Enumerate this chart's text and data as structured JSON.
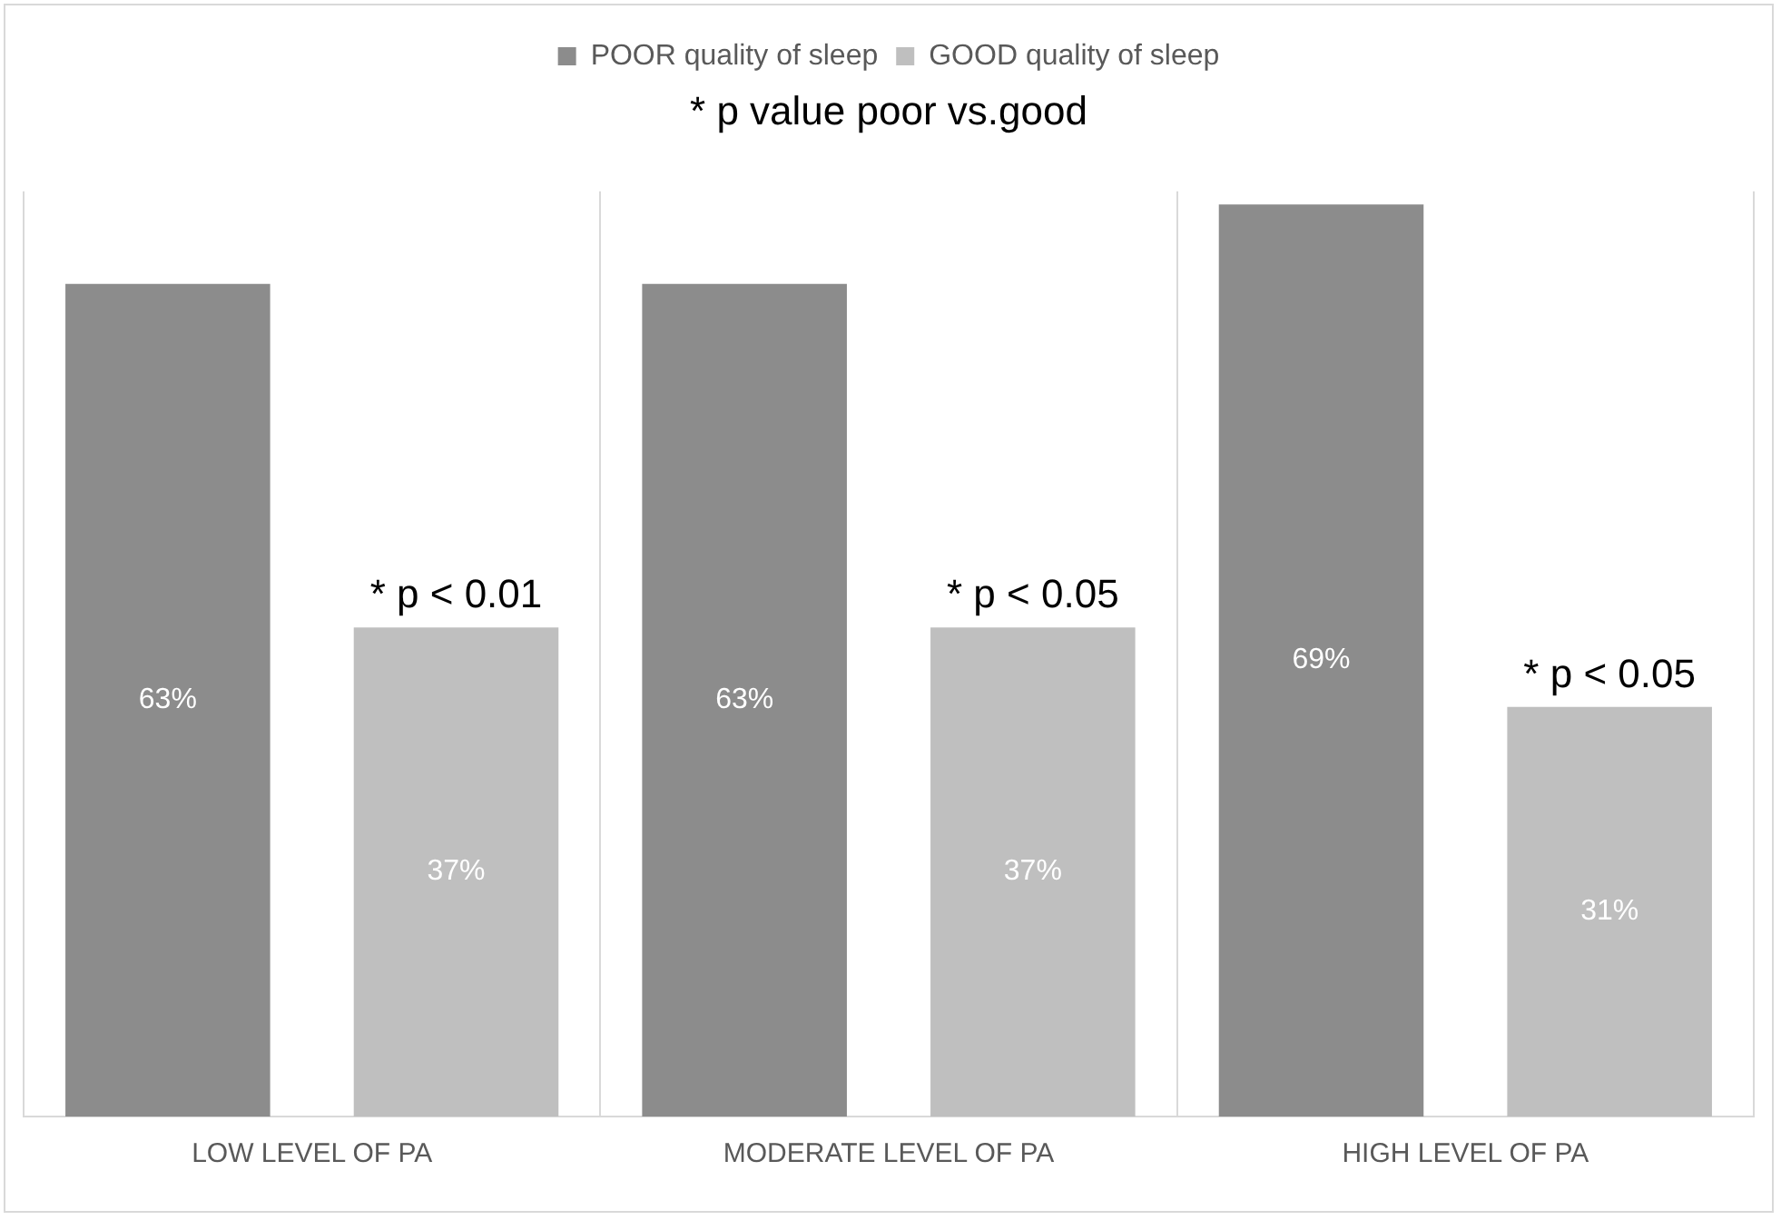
{
  "chart_data": {
    "type": "bar",
    "title": "* p value poor vs.good",
    "categories": [
      "LOW LEVEL OF PA",
      "MODERATE LEVEL OF PA",
      "HIGH LEVEL OF PA"
    ],
    "series": [
      {
        "name": "POOR quality of sleep",
        "color": "#8c8c8c",
        "values": [
          63,
          63,
          69
        ],
        "value_labels": [
          "63%",
          "63%",
          "69%"
        ]
      },
      {
        "name": "GOOD quality of sleep",
        "color": "#bfbfbf",
        "values": [
          37,
          37,
          31
        ],
        "value_labels": [
          "37%",
          "37%",
          "31%"
        ]
      }
    ],
    "annotations": [
      "* p < 0.01",
      "* p < 0.05",
      "* p < 0.05"
    ],
    "grid": "x",
    "legend": "top"
  }
}
